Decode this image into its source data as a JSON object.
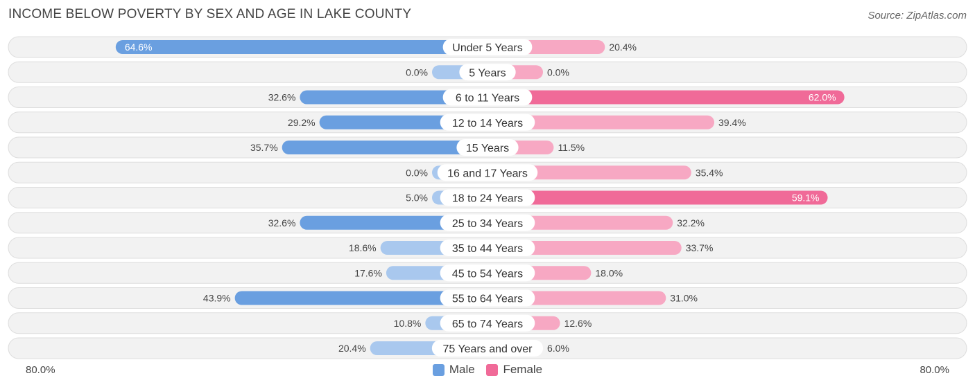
{
  "title": "INCOME BELOW POVERTY BY SEX AND AGE IN LAKE COUNTY",
  "source": "Source: ZipAtlas.com",
  "axis": {
    "left_label": "80.0%",
    "right_label": "80.0%"
  },
  "legend": [
    {
      "label": "Male",
      "color": "#6a9fe0"
    },
    {
      "label": "Female",
      "color": "#f06a98"
    }
  ],
  "colors": {
    "male_strong": "#6a9fe0",
    "male_light": "#a9c8ee",
    "female_strong": "#f06a98",
    "female_light": "#f7a8c3",
    "row_bg": "#f2f2f2",
    "row_border": "#dddddd"
  },
  "chart_data": {
    "type": "bar",
    "orientation": "horizontal-diverging",
    "title": "INCOME BELOW POVERTY BY SEX AND AGE IN LAKE COUNTY",
    "categories": [
      "Under 5 Years",
      "5 Years",
      "6 to 11 Years",
      "12 to 14 Years",
      "15 Years",
      "16 and 17 Years",
      "18 to 24 Years",
      "25 to 34 Years",
      "35 to 44 Years",
      "45 to 54 Years",
      "55 to 64 Years",
      "65 to 74 Years",
      "75 Years and over"
    ],
    "series": [
      {
        "name": "Male",
        "values": [
          64.6,
          0.0,
          32.6,
          29.2,
          35.7,
          0.0,
          5.0,
          32.6,
          18.6,
          17.6,
          43.9,
          10.8,
          20.4
        ],
        "labels": [
          "64.6%",
          "0.0%",
          "32.6%",
          "29.2%",
          "35.7%",
          "0.0%",
          "5.0%",
          "32.6%",
          "18.6%",
          "17.6%",
          "43.9%",
          "10.8%",
          "20.4%"
        ]
      },
      {
        "name": "Female",
        "values": [
          20.4,
          0.0,
          62.0,
          39.4,
          11.5,
          35.4,
          59.1,
          32.2,
          33.7,
          18.0,
          31.0,
          12.6,
          6.0
        ],
        "labels": [
          "20.4%",
          "0.0%",
          "62.0%",
          "39.4%",
          "11.5%",
          "35.4%",
          "59.1%",
          "32.2%",
          "33.7%",
          "18.0%",
          "31.0%",
          "12.6%",
          "6.0%"
        ]
      }
    ],
    "xlim": [
      -80,
      80
    ],
    "legend_position": "bottom-center"
  }
}
